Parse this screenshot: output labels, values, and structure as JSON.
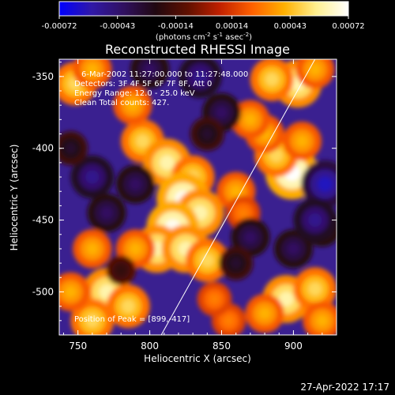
{
  "chart_data": {
    "type": "heatmap",
    "title": "Reconstructed RHESSI Image",
    "colorbar": {
      "ticks": [
        "-0.00072",
        "-0.00043",
        "-0.00014",
        "0.00014",
        "0.00043",
        "0.00072"
      ],
      "label_main": "(photons cm",
      "label_exp1": "-2",
      "label_mid1": " s",
      "label_exp2": "-1",
      "label_mid2": " asec",
      "label_exp3": "-2",
      "label_end": ")",
      "vmin": -0.00072,
      "vmax": 0.00072,
      "colors": [
        "#0000ff",
        "#3018a8",
        "#301060",
        "#200810",
        "#601000",
        "#c02000",
        "#ff6000",
        "#ffb000",
        "#fff090",
        "#ffffff"
      ]
    },
    "xlabel": "Heliocentric X (arcsec)",
    "ylabel": "Heliocentric Y (arcsec)",
    "xlim": [
      737,
      930
    ],
    "ylim": [
      -530,
      -338
    ],
    "xticks": [
      "750",
      "800",
      "850",
      "900"
    ],
    "yticks": [
      "-350",
      "-400",
      "-450",
      "-500"
    ],
    "limb_line": {
      "x": [
        808,
        915
      ],
      "y": [
        -530,
        -338
      ]
    },
    "info_lines": [
      "6-Mar-2002 11:27:00.000 to 11:27:48.000",
      "Detectors: 3F 4F 5F 6F 7F 8F, Att 0",
      "Energy Range: 12.0 - 25.0 keV",
      "Clean    Total counts: 427."
    ],
    "peak_label": "Position of Peak = [899,-417]",
    "peak": {
      "x": 899,
      "y": -417
    },
    "blobs": [
      {
        "x": 795,
        "y": -395,
        "v": 0.0005
      },
      {
        "x": 812,
        "y": -410,
        "v": 0.0006
      },
      {
        "x": 830,
        "y": -420,
        "v": 0.0005
      },
      {
        "x": 823,
        "y": -435,
        "v": 0.0007
      },
      {
        "x": 835,
        "y": -445,
        "v": 0.0006
      },
      {
        "x": 816,
        "y": -455,
        "v": 0.0007
      },
      {
        "x": 805,
        "y": -470,
        "v": 0.0006
      },
      {
        "x": 825,
        "y": -470,
        "v": 0.0006
      },
      {
        "x": 840,
        "y": -478,
        "v": 0.0005
      },
      {
        "x": 790,
        "y": -470,
        "v": 0.0004
      },
      {
        "x": 760,
        "y": -470,
        "v": 0.0004
      },
      {
        "x": 770,
        "y": -500,
        "v": 0.0006
      },
      {
        "x": 785,
        "y": -510,
        "v": 0.0005
      },
      {
        "x": 760,
        "y": -520,
        "v": 0.0005
      },
      {
        "x": 745,
        "y": -500,
        "v": 0.0004
      },
      {
        "x": 748,
        "y": -355,
        "v": 0.0005
      },
      {
        "x": 760,
        "y": -345,
        "v": 0.0004
      },
      {
        "x": 788,
        "y": -370,
        "v": 0.0004
      },
      {
        "x": 903,
        "y": -355,
        "v": 0.0006
      },
      {
        "x": 885,
        "y": -352,
        "v": 0.0005
      },
      {
        "x": 915,
        "y": -345,
        "v": 0.0004
      },
      {
        "x": 899,
        "y": -417,
        "v": 0.00072
      },
      {
        "x": 888,
        "y": -405,
        "v": 0.0005
      },
      {
        "x": 906,
        "y": -395,
        "v": 0.0004
      },
      {
        "x": 880,
        "y": -390,
        "v": 0.0004
      },
      {
        "x": 870,
        "y": -380,
        "v": 0.0004
      },
      {
        "x": 860,
        "y": -430,
        "v": 0.0004
      },
      {
        "x": 865,
        "y": -445,
        "v": 0.0003
      },
      {
        "x": 895,
        "y": -505,
        "v": 0.0006
      },
      {
        "x": 915,
        "y": -498,
        "v": 0.0005
      },
      {
        "x": 880,
        "y": -515,
        "v": 0.0004
      },
      {
        "x": 920,
        "y": -520,
        "v": 0.0004
      },
      {
        "x": 855,
        "y": -520,
        "v": 0.0003
      },
      {
        "x": 845,
        "y": -505,
        "v": 0.0003
      },
      {
        "x": 870,
        "y": -462,
        "v": -0.0004
      },
      {
        "x": 900,
        "y": -470,
        "v": -0.0004
      },
      {
        "x": 920,
        "y": -455,
        "v": -0.0004
      },
      {
        "x": 922,
        "y": -425,
        "v": -0.0006
      },
      {
        "x": 790,
        "y": -425,
        "v": -0.0004
      },
      {
        "x": 760,
        "y": -420,
        "v": -0.0005
      },
      {
        "x": 770,
        "y": -445,
        "v": -0.0004
      },
      {
        "x": 800,
        "y": -345,
        "v": -0.0004
      },
      {
        "x": 835,
        "y": -350,
        "v": -0.0005
      },
      {
        "x": 850,
        "y": -375,
        "v": -0.0004
      },
      {
        "x": 840,
        "y": -390,
        "v": -0.0003
      },
      {
        "x": 915,
        "y": -450,
        "v": -0.0005
      },
      {
        "x": 745,
        "y": -400,
        "v": -0.0003
      },
      {
        "x": 780,
        "y": -485,
        "v": -0.0002
      },
      {
        "x": 860,
        "y": -480,
        "v": -0.0003
      }
    ]
  },
  "footer": {
    "timestamp": "27-Apr-2022 17:17"
  }
}
